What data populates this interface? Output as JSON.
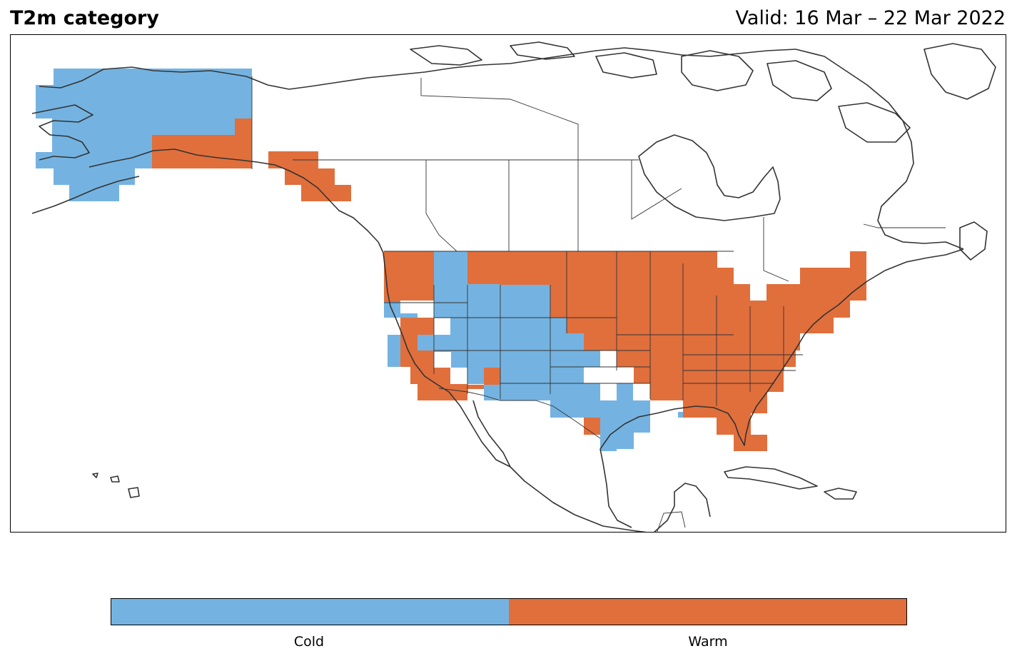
{
  "title": "T2m category",
  "valid": "Valid: 16 Mar – 22 Mar 2022",
  "colors": {
    "cold": "#74b3e1",
    "warm": "#e06f3c",
    "coast": "#333333"
  },
  "legend": [
    {
      "label": "Cold",
      "color": "#74b3e1"
    },
    {
      "label": "Warm",
      "color": "#e06f3c"
    }
  ],
  "categories": [
    {
      "name": "Alaska west/central",
      "category": "Cold"
    },
    {
      "name": "Southern Alaska coast",
      "category": "Warm"
    },
    {
      "name": "Southeast Alaska panhandle",
      "category": "Warm"
    },
    {
      "name": "Pacific Northwest",
      "category": "Warm"
    },
    {
      "name": "Great Basin and Rockies",
      "category": "Cold"
    },
    {
      "name": "California",
      "category": "Warm"
    },
    {
      "name": "Southern Plains and Texas",
      "category": "Cold"
    },
    {
      "name": "Northern Plains",
      "category": "Warm"
    },
    {
      "name": "Midwest and Great Lakes",
      "category": "Warm"
    },
    {
      "name": "Southeast",
      "category": "Warm"
    },
    {
      "name": "Northeast",
      "category": "Warm"
    },
    {
      "name": "Florida",
      "category": "Warm"
    }
  ]
}
